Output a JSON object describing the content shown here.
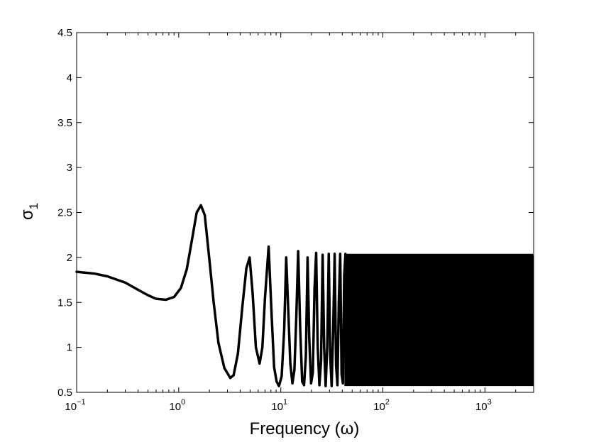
{
  "chart_data": {
    "type": "line",
    "xlabel": "Frequency (ω)",
    "ylabel": "σ",
    "ylabel_subscript": "1",
    "x_scale": "log",
    "xlim": [
      0.1,
      3000
    ],
    "ylim": [
      0.5,
      4.5
    ],
    "grid": false,
    "line_color": "#000000",
    "x_ticks": [
      {
        "value": 0.1,
        "base": "10",
        "exp": "−1"
      },
      {
        "value": 1,
        "base": "10",
        "exp": "0"
      },
      {
        "value": 10,
        "base": "10",
        "exp": "1"
      },
      {
        "value": 100,
        "base": "10",
        "exp": "2"
      },
      {
        "value": 1000,
        "base": "10",
        "exp": "3"
      }
    ],
    "y_ticks": [
      {
        "value": 0.5,
        "label": "0.5"
      },
      {
        "value": 1,
        "label": "1"
      },
      {
        "value": 1.5,
        "label": "1.5"
      },
      {
        "value": 2,
        "label": "2"
      },
      {
        "value": 2.5,
        "label": "2.5"
      },
      {
        "value": 3,
        "label": "3"
      },
      {
        "value": 3.5,
        "label": "3.5"
      },
      {
        "value": 4,
        "label": "4"
      },
      {
        "value": 4.5,
        "label": "4.5"
      }
    ],
    "series": [
      {
        "x": [
          0.1,
          0.15,
          0.2,
          0.3,
          0.4,
          0.5,
          0.6,
          0.75,
          0.9,
          1.05,
          1.2,
          1.35,
          1.5,
          1.65,
          1.8,
          2.0,
          2.2,
          2.45,
          2.8,
          3.2,
          3.45,
          3.8,
          4.2,
          4.6,
          4.95,
          5.3,
          5.7,
          6.2,
          6.6,
          7.0,
          7.6,
          8.1,
          8.6,
          9.1,
          9.6,
          10.2,
          10.8,
          11.3,
          11.8,
          12.4,
          13.0,
          13.6,
          14.2,
          14.8,
          15.5,
          16.2,
          16.9,
          17.6,
          18.3,
          19.0,
          19.8,
          20.6,
          21.4,
          22.2,
          23.0,
          23.9,
          24.8,
          25.7,
          26.6,
          27.5,
          28.5,
          29.5,
          30.5,
          31.5,
          32.6,
          33.7,
          34.8,
          35.9,
          37.0,
          38.2,
          39.4,
          40.6,
          41.8,
          43.0
        ],
        "y": [
          1.84,
          1.82,
          1.79,
          1.72,
          1.64,
          1.58,
          1.54,
          1.53,
          1.56,
          1.66,
          1.87,
          2.2,
          2.5,
          2.58,
          2.47,
          1.97,
          1.5,
          1.05,
          0.77,
          0.66,
          0.69,
          0.93,
          1.45,
          1.88,
          2.0,
          1.6,
          1.0,
          0.82,
          1.0,
          1.55,
          2.12,
          1.4,
          0.78,
          0.62,
          0.57,
          0.68,
          1.2,
          2.0,
          1.45,
          0.82,
          0.6,
          0.75,
          1.35,
          2.07,
          1.2,
          0.62,
          0.58,
          0.9,
          2.0,
          1.1,
          0.6,
          0.72,
          1.65,
          2.05,
          1.0,
          0.58,
          0.85,
          2.03,
          1.0,
          0.57,
          1.0,
          2.04,
          0.9,
          0.57,
          1.2,
          2.04,
          0.8,
          0.58,
          1.5,
          2.04,
          0.7,
          0.6,
          1.8,
          2.04
        ]
      }
    ],
    "dense_band": {
      "x_start": 43,
      "x_end": 3000,
      "y_min": 0.57,
      "y_max": 2.04
    }
  }
}
